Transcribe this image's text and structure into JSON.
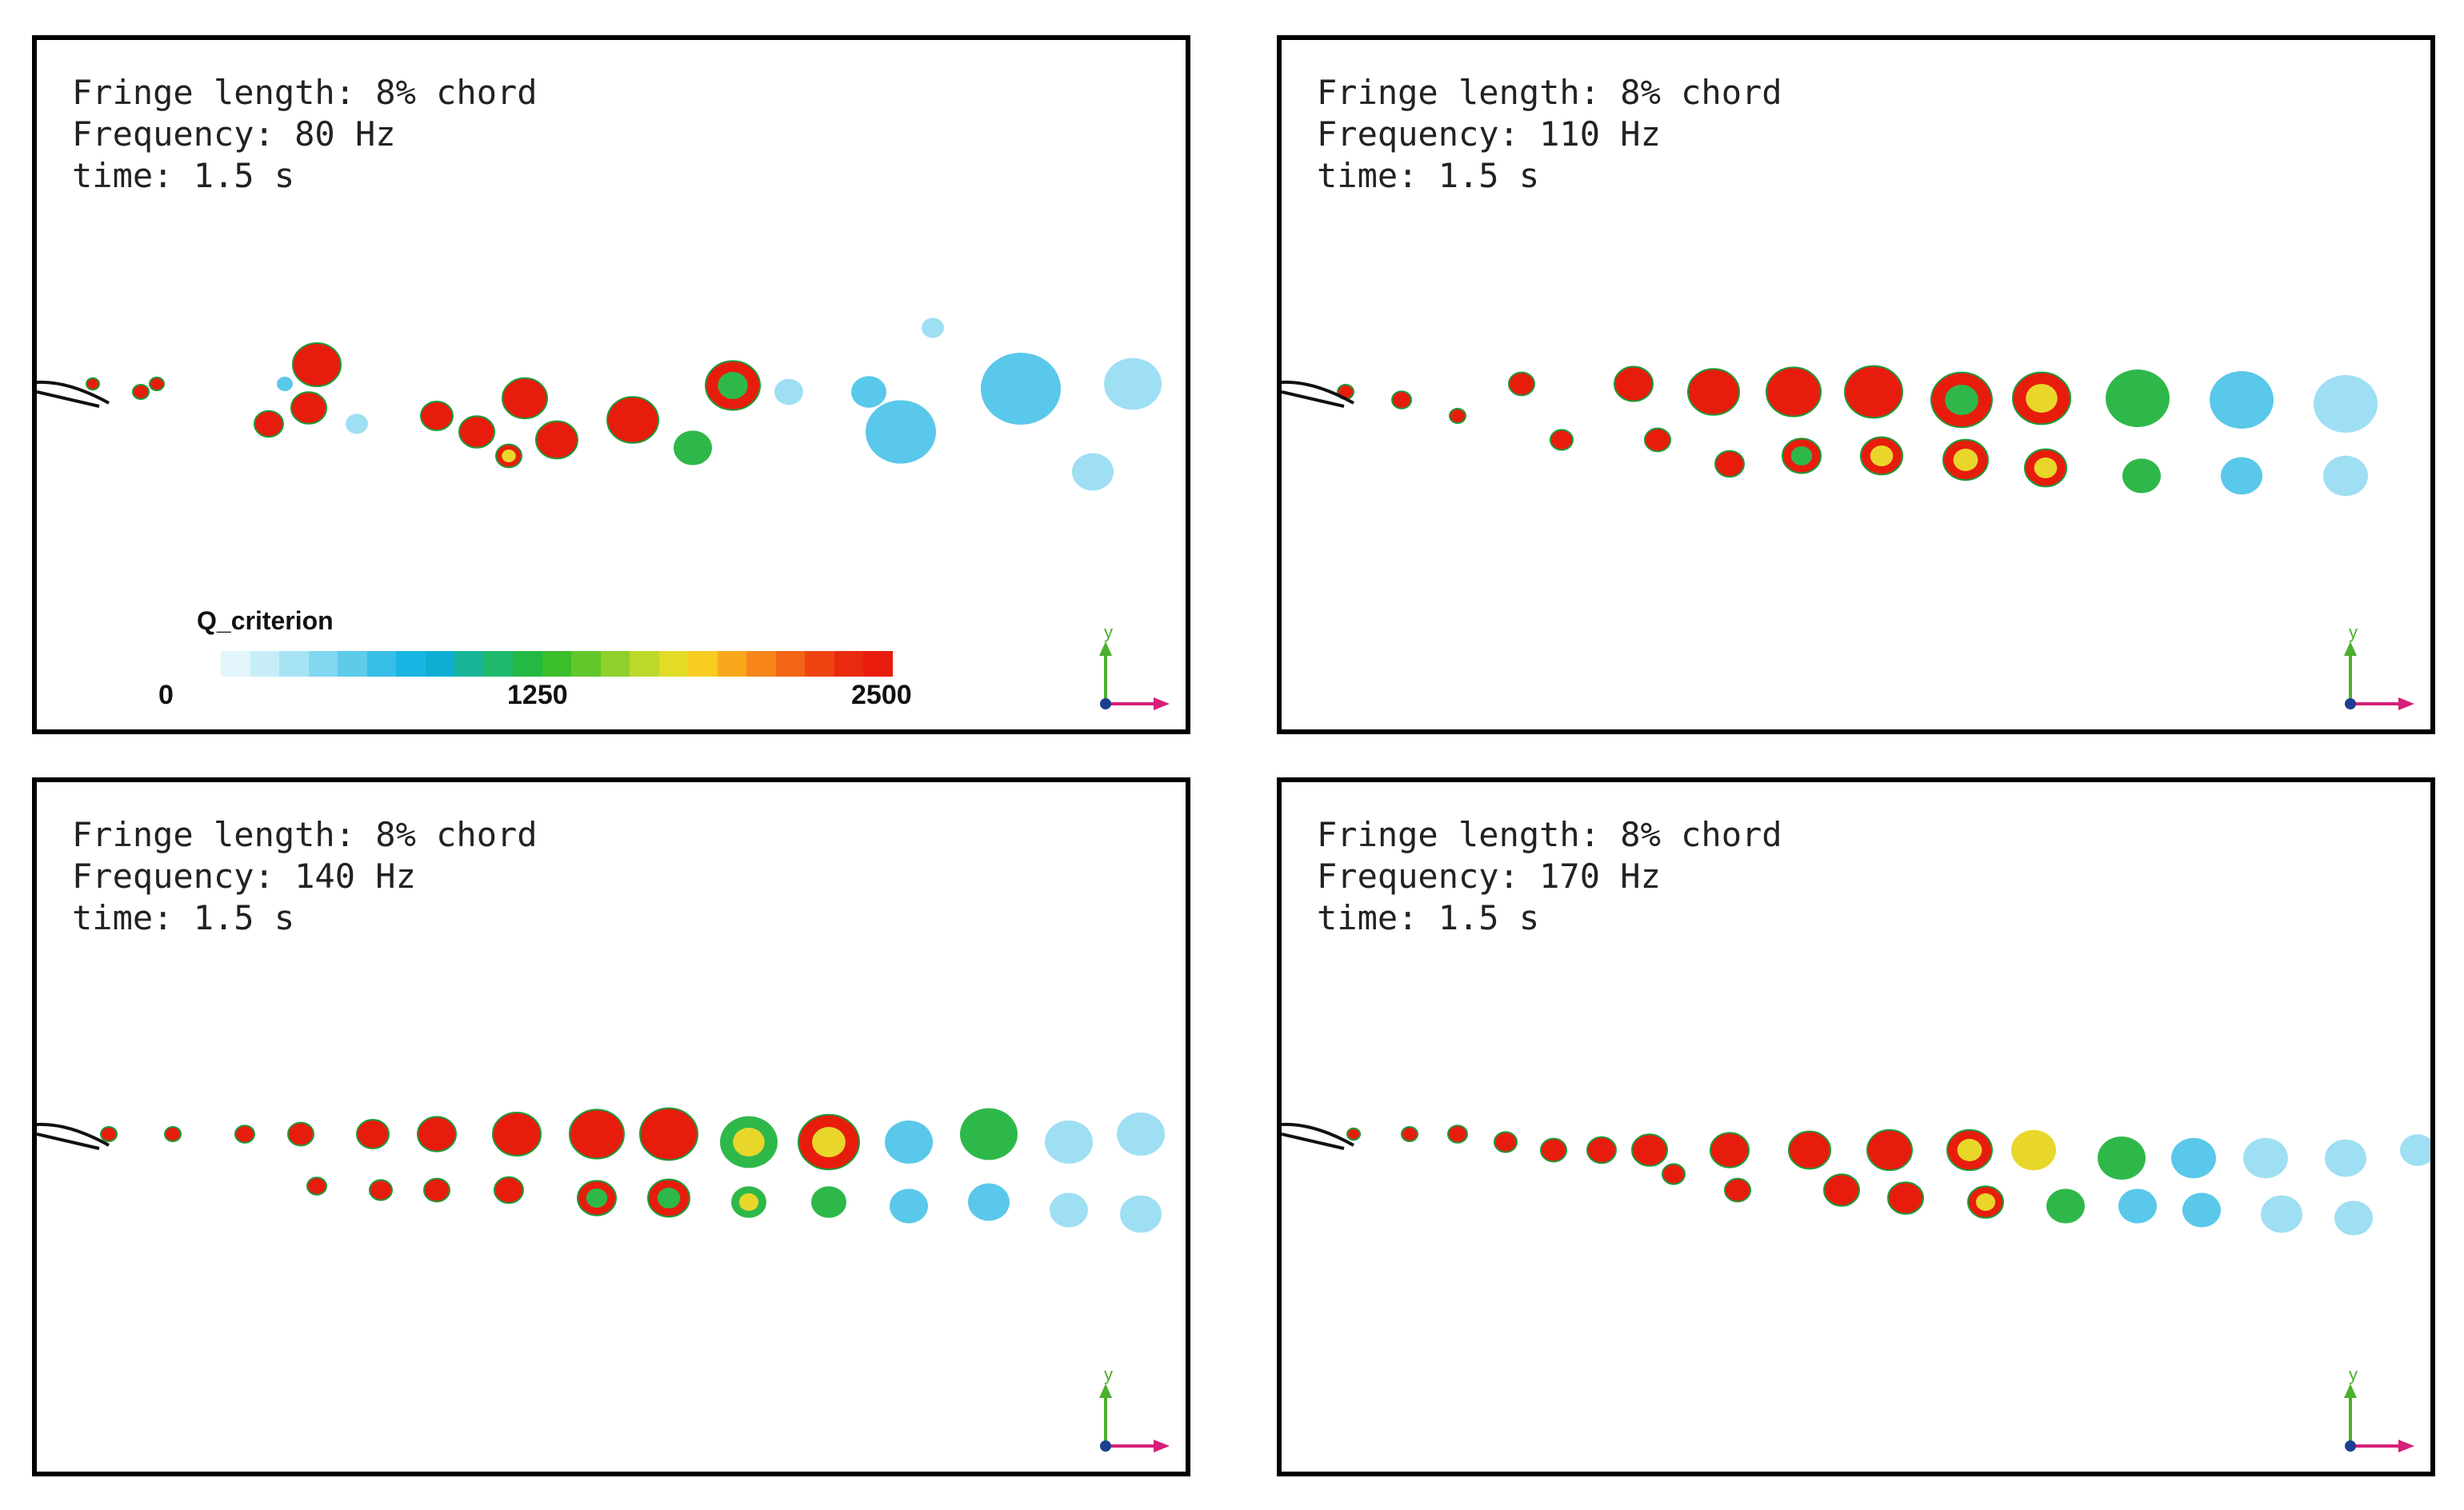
{
  "panels": [
    {
      "fringe_length": "Fringe length: 8% chord",
      "frequency": "Frequency: 80 Hz",
      "time": "time: 1.5 s"
    },
    {
      "fringe_length": "Fringe length: 8% chord",
      "frequency": "Frequency: 110 Hz",
      "time": "time: 1.5 s"
    },
    {
      "fringe_length": "Fringe length: 8% chord",
      "frequency": "Frequency: 140 Hz",
      "time": "time: 1.5 s"
    },
    {
      "fringe_length": "Fringe length: 8% chord",
      "frequency": "Frequency: 170 Hz",
      "time": "time: 1.5 s"
    }
  ],
  "legend": {
    "title": "Q_criterion",
    "min_label": "0",
    "mid_label": "1250",
    "max_label": "2500",
    "min_value": 0,
    "max_value": 2500,
    "colors": [
      "#e2f6fb",
      "#c7eef8",
      "#a6e4f4",
      "#82d8f0",
      "#5ecbe9",
      "#38bee6",
      "#19b5e3",
      "#0eaed4",
      "#18b49a",
      "#1fba6c",
      "#23b943",
      "#3cbf2c",
      "#62c72a",
      "#90d02a",
      "#bcd82b",
      "#e2dc26",
      "#f8cc21",
      "#f9a81e",
      "#f7851a",
      "#f36416",
      "#ef4412",
      "#ea2a0f",
      "#e81c0d"
    ]
  },
  "axis": {
    "y_label": "y",
    "y_color": "#4caf2d",
    "x_color": "#d61f7a",
    "origin_color": "#1d3f8f"
  }
}
